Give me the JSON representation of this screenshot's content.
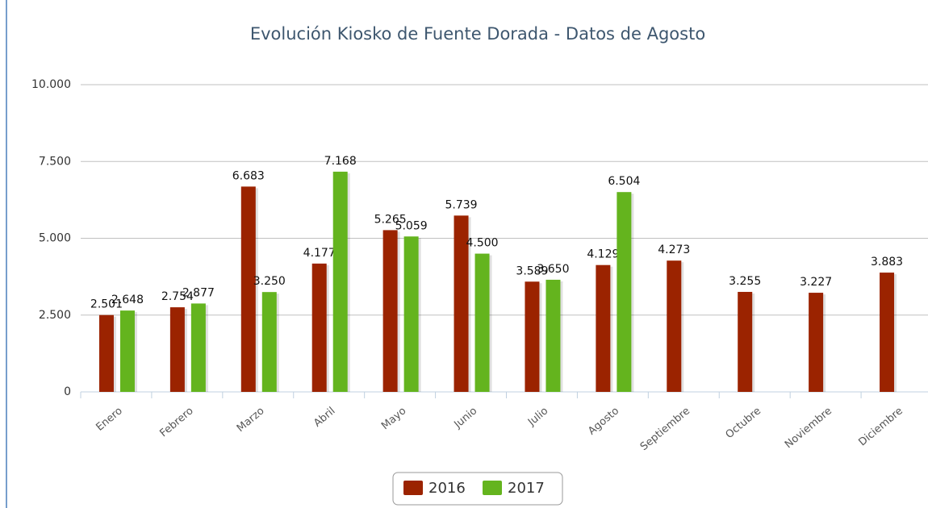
{
  "chart_data": {
    "type": "bar",
    "title": "Evolución Kiosko de Fuente Dorada - Datos de Agosto",
    "categories": [
      "Enero",
      "Febrero",
      "Marzo",
      "Abril",
      "Mayo",
      "Junio",
      "Julio",
      "Agosto",
      "Septiembre",
      "Octubre",
      "Noviembre",
      "Diciembre"
    ],
    "series": [
      {
        "name": "2016",
        "color": "#9b2300",
        "values": [
          2501,
          2754,
          6683,
          4177,
          5265,
          5739,
          3589,
          4129,
          4273,
          3255,
          3227,
          3883
        ],
        "value_labels": [
          "2.501",
          "2.754",
          "6.683",
          "4.177",
          "5.265",
          "5.739",
          "3.589",
          "4.129",
          "4.273",
          "3.255",
          "3.227",
          "3.883"
        ]
      },
      {
        "name": "2017",
        "color": "#64b41e",
        "values": [
          2648,
          2877,
          3250,
          7168,
          5059,
          4500,
          3650,
          6504,
          null,
          null,
          null,
          null
        ],
        "value_labels": [
          "2.648",
          "2.877",
          "3.250",
          "7.168",
          "5.059",
          "4.500",
          "3.650",
          "6.504",
          null,
          null,
          null,
          null
        ]
      }
    ],
    "ylim": [
      0,
      10000
    ],
    "yticks": [
      0,
      {
        "value": 2500,
        "label": "2.500"
      },
      {
        "value": 5000,
        "label": "5.000"
      },
      {
        "value": 7500,
        "label": "7.500"
      },
      {
        "value": 10000,
        "label": "10.000"
      }
    ],
    "grid": true,
    "legend": "bottom"
  }
}
